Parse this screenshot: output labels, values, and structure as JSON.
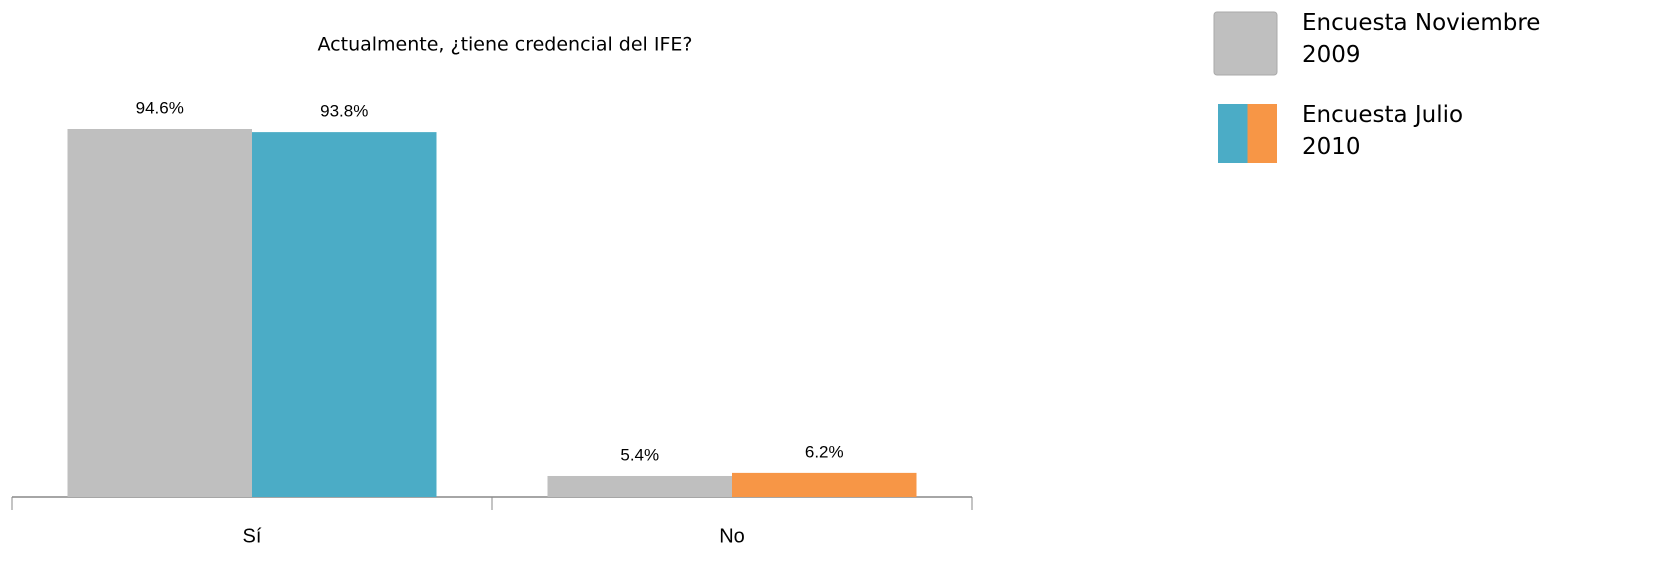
{
  "chart_data": {
    "type": "bar",
    "title": "Actualmente, ¿tiene credencial del IFE?",
    "categories": [
      "Sí",
      "No"
    ],
    "series": [
      {
        "name": "Encuesta Noviembre 2009",
        "color": "#bfbfbf",
        "values": [
          94.6,
          5.4
        ],
        "value_labels": [
          "94.6%",
          "5.4%"
        ]
      },
      {
        "name": "Encuesta Julio 2010",
        "colors": [
          "#4bacc6",
          "#f79646"
        ],
        "values": [
          93.8,
          6.2
        ],
        "value_labels": [
          "93.8%",
          "6.2%"
        ]
      }
    ],
    "ylim": [
      0,
      100
    ]
  }
}
